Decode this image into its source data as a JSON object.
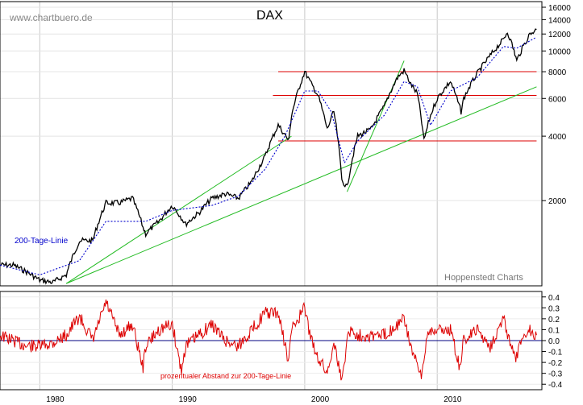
{
  "watermark": "www.chartbuero.de",
  "credit": "Hoppenstedt Charts",
  "colors": {
    "price": "#000000",
    "ma": "#0000cc",
    "support": "#dd0000",
    "trend": "#22bb22",
    "osc": "#dd0000",
    "zero": "#000080"
  },
  "chart_data": [
    {
      "type": "line",
      "title": "DAX",
      "yscale": "log",
      "x_ticks": [
        "1980",
        "1990",
        "2000",
        "2010"
      ],
      "y_ticks": [
        "16000",
        "14000",
        "12000",
        "10000",
        "8000",
        "6000",
        "4000",
        "2000"
      ],
      "ylim": [
        800,
        17000
      ],
      "xlim": [
        1977,
        2017.9
      ],
      "ma_label": "200-Tage-Linie",
      "series": [
        {
          "values": [
            [
              1977,
              1000
            ],
            [
              1978,
              1000
            ],
            [
              1979,
              930
            ],
            [
              1980,
              850
            ],
            [
              1981,
              830
            ],
            [
              1982,
              900
            ],
            [
              1983,
              1300
            ],
            [
              1984,
              1300
            ],
            [
              1985,
              1950
            ],
            [
              1986,
              1950
            ],
            [
              1987,
              2050
            ],
            [
              1987.8,
              1500
            ],
            [
              1988,
              1400
            ],
            [
              1989,
              1600
            ],
            [
              1990,
              1900
            ],
            [
              1990.6,
              1700
            ],
            [
              1991,
              1550
            ],
            [
              1992,
              1750
            ],
            [
              1993,
              2050
            ],
            [
              1994,
              2150
            ],
            [
              1995,
              2050
            ],
            [
              1996,
              2450
            ],
            [
              1997,
              3200
            ],
            [
              1998,
              4500
            ],
            [
              1998.8,
              3800
            ],
            [
              1999,
              5000
            ],
            [
              2000,
              8000
            ],
            [
              2000.5,
              7000
            ],
            [
              2001,
              6200
            ],
            [
              2001.7,
              4300
            ],
            [
              2002.2,
              5200
            ],
            [
              2002.8,
              2500
            ],
            [
              2003.2,
              2300
            ],
            [
              2004,
              4000
            ],
            [
              2005,
              4300
            ],
            [
              2006,
              5500
            ],
            [
              2007,
              7500
            ],
            [
              2007.5,
              8100
            ],
            [
              2008,
              7000
            ],
            [
              2008.5,
              6300
            ],
            [
              2009,
              3800
            ],
            [
              2009.5,
              5000
            ],
            [
              2010,
              6000
            ],
            [
              2011,
              7200
            ],
            [
              2011.8,
              5200
            ],
            [
              2012,
              6000
            ],
            [
              2013,
              7800
            ],
            [
              2014,
              9500
            ],
            [
              2015,
              11300
            ],
            [
              2015.3,
              12300
            ],
            [
              2015.8,
              10000
            ],
            [
              2016,
              9000
            ],
            [
              2016.5,
              10500
            ],
            [
              2017,
              12000
            ],
            [
              2017.5,
              12600
            ]
          ]
        },
        {
          "values": [
            [
              1977,
              1000
            ],
            [
              1980,
              900
            ],
            [
              1983,
              1050
            ],
            [
              1985,
              1600
            ],
            [
              1988,
              1600
            ],
            [
              1990,
              1800
            ],
            [
              1993,
              1900
            ],
            [
              1995,
              2100
            ],
            [
              1997,
              2800
            ],
            [
              1998.5,
              4000
            ],
            [
              2000,
              6500
            ],
            [
              2001,
              6500
            ],
            [
              2002,
              5200
            ],
            [
              2003,
              3000
            ],
            [
              2004,
              3800
            ],
            [
              2006,
              5000
            ],
            [
              2007.5,
              7200
            ],
            [
              2008.5,
              6800
            ],
            [
              2009.5,
              4500
            ],
            [
              2011,
              6500
            ],
            [
              2013,
              7500
            ],
            [
              2015,
              10500
            ],
            [
              2016,
              10300
            ],
            [
              2017.5,
              11600
            ]
          ]
        }
      ],
      "trend_lines": [
        [
          [
            1982,
            820
          ],
          [
            1999,
            4000
          ]
        ],
        [
          [
            1982,
            820
          ],
          [
            2017.5,
            6800
          ]
        ],
        [
          [
            2003.2,
            2200
          ],
          [
            2007.5,
            9000
          ]
        ]
      ],
      "support_levels": [
        {
          "y": 8000,
          "x0": 1998,
          "x1": 2017.5
        },
        {
          "y": 6200,
          "x0": 1997.6,
          "x1": 2017.5
        },
        {
          "y": 3800,
          "x0": 1998,
          "x1": 2017.5
        }
      ]
    },
    {
      "type": "line",
      "label": "prozentualer Abstand zur 200-Tage-Linie",
      "y_ticks": [
        "0.4",
        "0.3",
        "0.2",
        "0.1",
        "0.0",
        "-0.1",
        "-0.2",
        "-0.3",
        "-0.4"
      ],
      "ylim": [
        -0.45,
        0.45
      ],
      "xlim": [
        1977,
        2017.9
      ],
      "baseline": 0.0,
      "values": [
        [
          1977,
          0.05
        ],
        [
          1978,
          0.0
        ],
        [
          1979,
          -0.05
        ],
        [
          1980,
          -0.05
        ],
        [
          1981,
          -0.02
        ],
        [
          1982,
          0.05
        ],
        [
          1983,
          0.22
        ],
        [
          1984,
          0.0
        ],
        [
          1985,
          0.35
        ],
        [
          1986,
          0.05
        ],
        [
          1987,
          0.15
        ],
        [
          1987.8,
          -0.25
        ],
        [
          1988,
          -0.05
        ],
        [
          1989,
          0.1
        ],
        [
          1990,
          0.15
        ],
        [
          1990.7,
          -0.28
        ],
        [
          1991,
          -0.05
        ],
        [
          1992,
          0.05
        ],
        [
          1993,
          0.15
        ],
        [
          1994,
          0.0
        ],
        [
          1995,
          -0.05
        ],
        [
          1996,
          0.1
        ],
        [
          1997,
          0.25
        ],
        [
          1998,
          0.25
        ],
        [
          1998.8,
          -0.2
        ],
        [
          1999,
          0.1
        ],
        [
          2000,
          0.3
        ],
        [
          2000.5,
          0.0
        ],
        [
          2001,
          -0.15
        ],
        [
          2001.7,
          -0.3
        ],
        [
          2002.2,
          0.0
        ],
        [
          2002.8,
          -0.38
        ],
        [
          2003.3,
          0.1
        ],
        [
          2004,
          0.05
        ],
        [
          2005,
          0.05
        ],
        [
          2006,
          0.05
        ],
        [
          2007,
          0.15
        ],
        [
          2007.5,
          0.2
        ],
        [
          2008,
          -0.05
        ],
        [
          2008.8,
          -0.35
        ],
        [
          2009.3,
          0.1
        ],
        [
          2010,
          0.1
        ],
        [
          2011,
          0.1
        ],
        [
          2011.7,
          -0.25
        ],
        [
          2012,
          0.0
        ],
        [
          2013,
          0.1
        ],
        [
          2014,
          -0.05
        ],
        [
          2015,
          0.2
        ],
        [
          2015.8,
          -0.15
        ],
        [
          2016,
          -0.15
        ],
        [
          2016.5,
          0.05
        ],
        [
          2017,
          0.1
        ],
        [
          2017.5,
          0.05
        ]
      ]
    }
  ]
}
